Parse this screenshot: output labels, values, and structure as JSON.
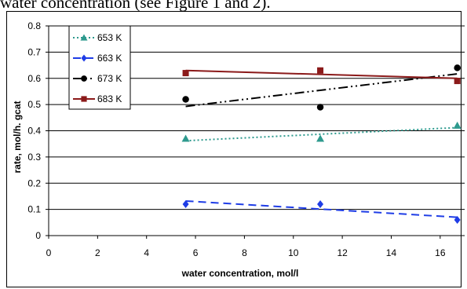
{
  "caption": "water concentration (see Figure 1 and 2).",
  "chart_data": {
    "type": "scatter",
    "title": "",
    "xlabel": "water concentration, mol/l",
    "ylabel": "rate, mol/h. gcat",
    "xlim": [
      0,
      17
    ],
    "ylim": [
      0,
      0.8
    ],
    "x_ticks": [
      "0",
      "2",
      "4",
      "6",
      "8",
      "10",
      "12",
      "14",
      "16"
    ],
    "y_ticks": [
      "0",
      "0.1",
      "0.2",
      "0.3",
      "0.4",
      "0.5",
      "0.6",
      "0.7",
      "0.8"
    ],
    "grid": "horizontal",
    "legend_position": "top-left",
    "series": [
      {
        "name": "653 K",
        "color": "#2e9a8e",
        "marker": "triangle",
        "x": [
          5.6,
          11.1,
          16.7
        ],
        "y": [
          0.37,
          0.37,
          0.42
        ],
        "trend": {
          "style": "dotted",
          "x": [
            5.6,
            16.7
          ],
          "y": [
            0.362,
            0.412
          ]
        }
      },
      {
        "name": "663 K",
        "color": "#1f3de6",
        "marker": "diamond",
        "x": [
          5.6,
          11.1,
          16.7
        ],
        "y": [
          0.12,
          0.12,
          0.06
        ],
        "trend": {
          "style": "dashed",
          "x": [
            5.6,
            16.7
          ],
          "y": [
            0.132,
            0.07
          ]
        }
      },
      {
        "name": "673 K",
        "color": "#000000",
        "marker": "circle",
        "x": [
          5.6,
          11.1,
          16.7
        ],
        "y": [
          0.52,
          0.49,
          0.64
        ],
        "trend": {
          "style": "dash-dot",
          "x": [
            5.6,
            16.7
          ],
          "y": [
            0.493,
            0.617
          ]
        }
      },
      {
        "name": "683 K",
        "color": "#8b1a1a",
        "marker": "square",
        "x": [
          5.6,
          11.1,
          16.7
        ],
        "y": [
          0.62,
          0.63,
          0.59
        ],
        "trend": {
          "style": "solid",
          "x": [
            5.6,
            16.7
          ],
          "y": [
            0.63,
            0.6
          ]
        }
      }
    ]
  }
}
